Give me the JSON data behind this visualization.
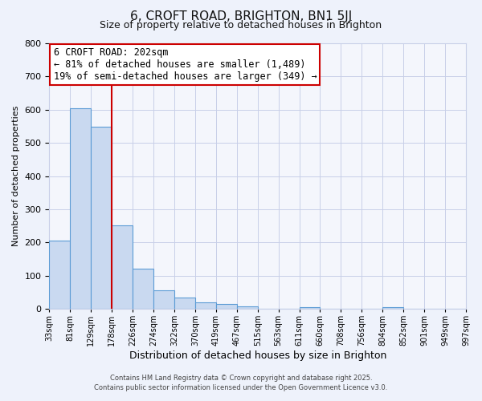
{
  "title1": "6, CROFT ROAD, BRIGHTON, BN1 5JJ",
  "title2": "Size of property relative to detached houses in Brighton",
  "xlabel": "Distribution of detached houses by size in Brighton",
  "ylabel": "Number of detached properties",
  "categories": [
    "33sqm",
    "81sqm",
    "129sqm",
    "178sqm",
    "226sqm",
    "274sqm",
    "322sqm",
    "370sqm",
    "419sqm",
    "467sqm",
    "515sqm",
    "563sqm",
    "611sqm",
    "660sqm",
    "708sqm",
    "756sqm",
    "804sqm",
    "852sqm",
    "901sqm",
    "949sqm",
    "997sqm"
  ],
  "bar_vals": [
    205,
    605,
    548,
    252,
    122,
    55,
    35,
    20,
    15,
    8,
    0,
    0,
    5,
    0,
    0,
    0,
    5,
    0,
    0,
    0
  ],
  "bar_color_fill": "#c9d9f0",
  "bar_color_edge": "#5b9bd5",
  "vline_x": 3,
  "vline_color": "#cc0000",
  "ylim": [
    0,
    800
  ],
  "yticks": [
    0,
    100,
    200,
    300,
    400,
    500,
    600,
    700,
    800
  ],
  "annotation_title": "6 CROFT ROAD: 202sqm",
  "annotation_line1": "← 81% of detached houses are smaller (1,489)",
  "annotation_line2": "19% of semi-detached houses are larger (349) →",
  "annotation_box_color": "#cc0000",
  "footnote1": "Contains HM Land Registry data © Crown copyright and database right 2025.",
  "footnote2": "Contains public sector information licensed under the Open Government Licence v3.0.",
  "bg_color": "#eef2fb",
  "plot_bg_color": "#f4f6fc",
  "grid_color": "#c8cfe8",
  "title_fontsize": 11,
  "subtitle_fontsize": 9,
  "annot_fontsize": 8.5,
  "xlabel_fontsize": 9,
  "ylabel_fontsize": 8,
  "tick_fontsize": 7,
  "footnote_fontsize": 6
}
